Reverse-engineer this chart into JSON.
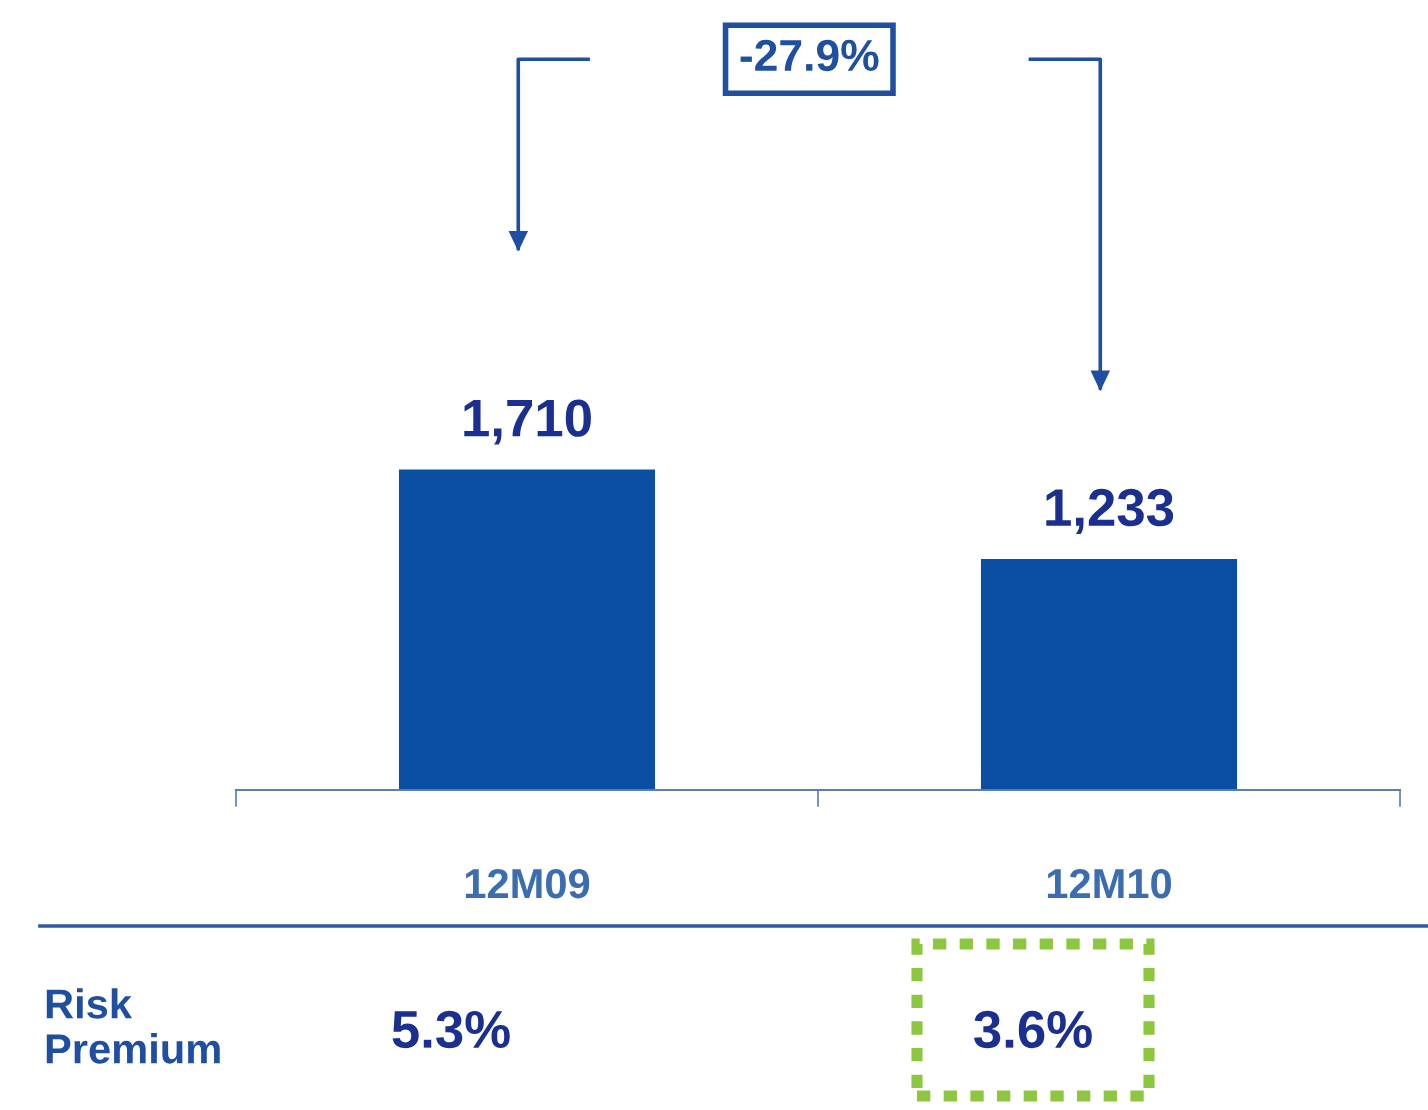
{
  "chart_data": {
    "type": "bar",
    "categories": [
      "12M09",
      "12M10"
    ],
    "values": [
      1710,
      1233
    ],
    "value_labels": [
      "1,710",
      "1,233"
    ],
    "color": "#0a4fa3",
    "grid": false,
    "legend": false,
    "annotations": [
      "-27.9%",
      "Risk\nPremium",
      "5.3%",
      "3.6%"
    ]
  }
}
